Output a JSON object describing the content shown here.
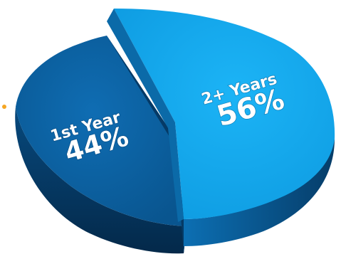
{
  "chart_data": {
    "type": "pie",
    "title": "",
    "slices": [
      {
        "label": "1st Year",
        "value": 44,
        "display": "44%",
        "color": "#0a5e9e",
        "side_color": "#063f6e"
      },
      {
        "label": "2+ Years",
        "value": 56,
        "display": "56%",
        "color": "#12a9f0",
        "side_color": "#0b5f99"
      }
    ],
    "style": "3d-exploded"
  },
  "colors": {
    "accent_dot": "#f5a623"
  }
}
